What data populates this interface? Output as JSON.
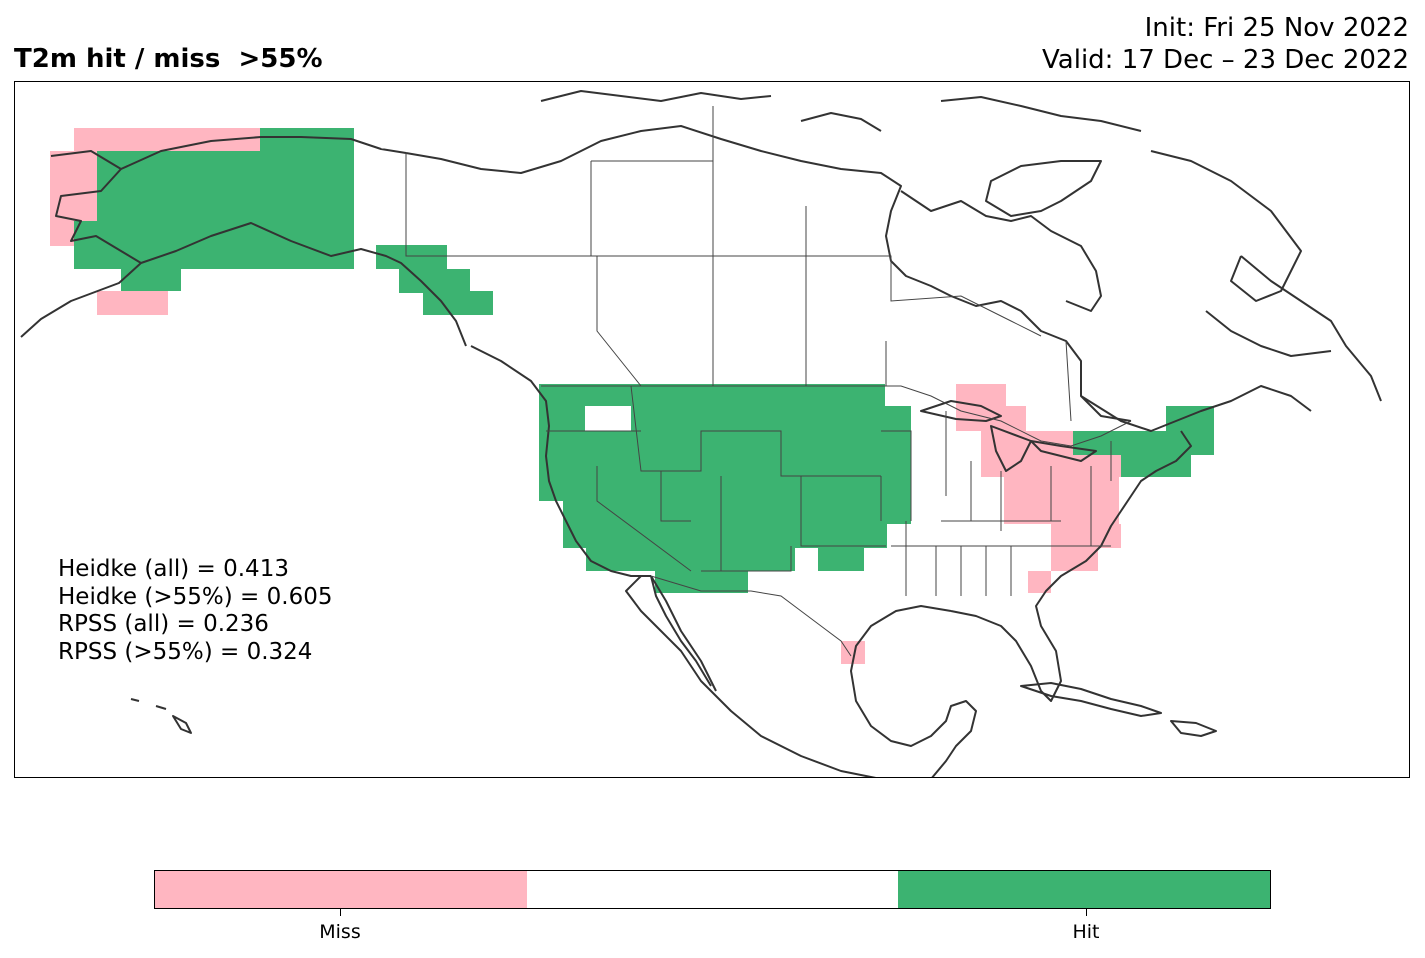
{
  "title": "T2m hit / miss  >55%",
  "init_line": "Init: Fri 25 Nov 2022",
  "valid_line": "Valid: 17 Dec – 23 Dec 2022",
  "scores": [
    "Heidke (all) = 0.413",
    "Heidke (>55%) = 0.605",
    "RPSS (all) = 0.236",
    "RPSS (>55%) = 0.324"
  ],
  "colors": {
    "miss": "#ffb6c1",
    "neutral": "#ffffff",
    "hit": "#3cb371",
    "coast": "#333333"
  },
  "legend": {
    "miss_label": "Miss",
    "hit_label": "Hit"
  }
}
